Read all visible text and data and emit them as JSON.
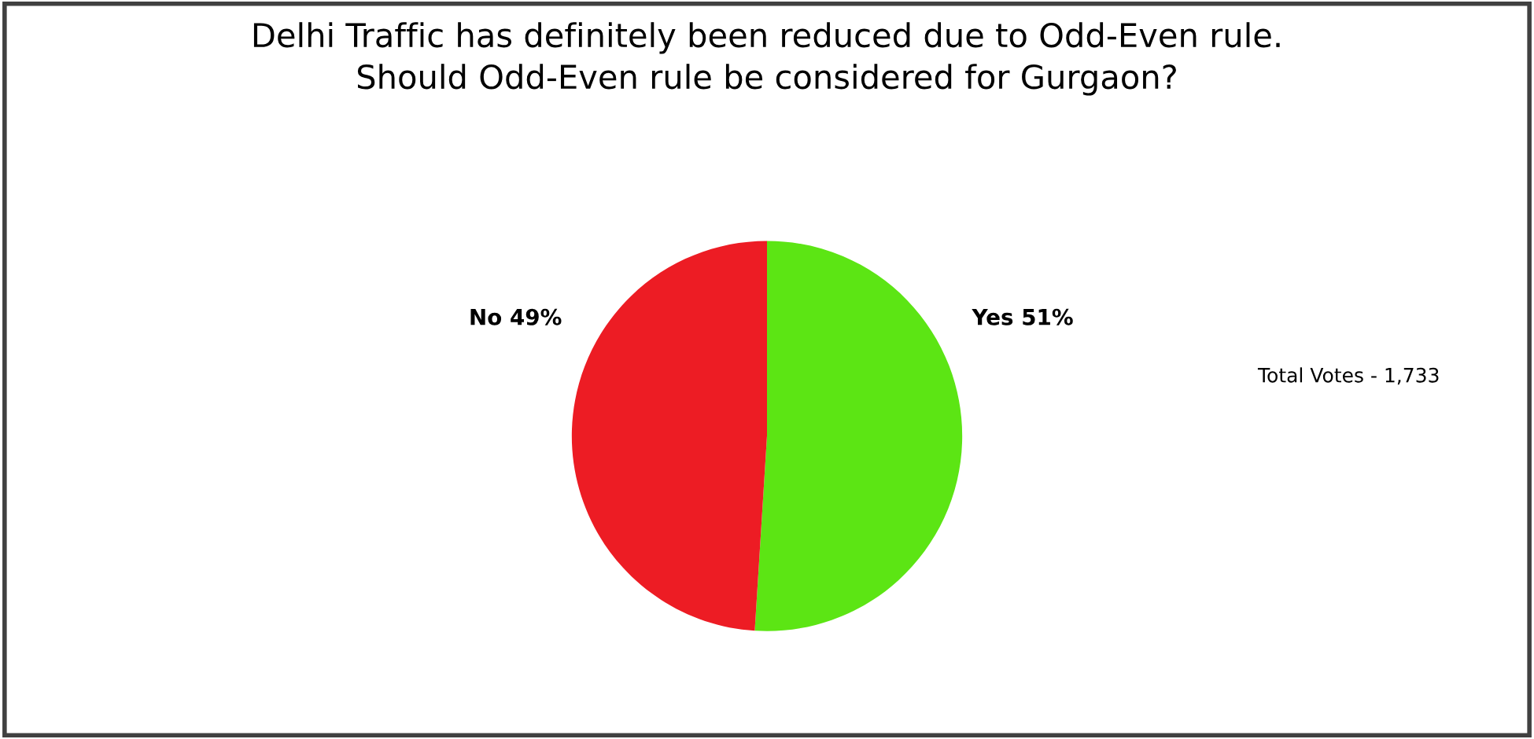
{
  "chart_data": {
    "type": "pie",
    "title": "Delhi Traffic has definitely been reduced due to Odd-Even rule.\nShould Odd-Even rule be considered for Gurgaon?",
    "categories": [
      "Yes",
      "No"
    ],
    "values": [
      51,
      49
    ],
    "colors": [
      "#5ce514",
      "#ed1c24"
    ],
    "value_labels": [
      "51%",
      "49%"
    ],
    "annotations": [
      "Total Votes - 1,733"
    ],
    "legend": false
  }
}
